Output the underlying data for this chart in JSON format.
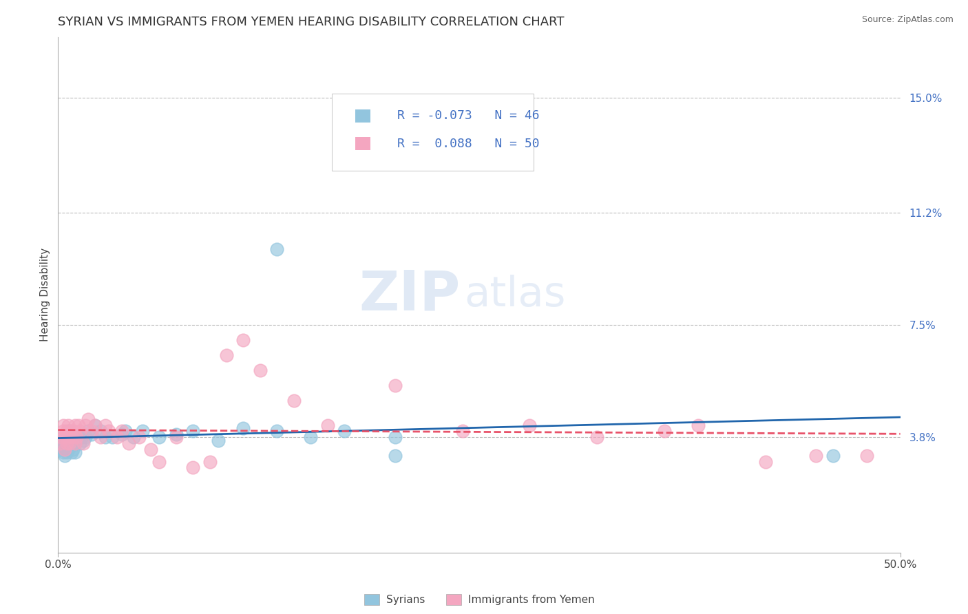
{
  "title": "SYRIAN VS IMMIGRANTS FROM YEMEN HEARING DISABILITY CORRELATION CHART",
  "source": "Source: ZipAtlas.com",
  "ylabel": "Hearing Disability",
  "xlabel_syrians": "Syrians",
  "xlabel_yemen": "Immigrants from Yemen",
  "watermark_zip": "ZIP",
  "watermark_atlas": "atlas",
  "xlim": [
    0.0,
    0.5
  ],
  "ylim": [
    0.0,
    0.17
  ],
  "yticks": [
    0.038,
    0.075,
    0.112,
    0.15
  ],
  "ytick_labels": [
    "3.8%",
    "7.5%",
    "11.2%",
    "15.0%"
  ],
  "xticks": [
    0.0,
    0.5
  ],
  "R_syrians": -0.073,
  "N_syrians": 46,
  "R_yemen": 0.088,
  "N_yemen": 50,
  "color_syrians": "#92c5de",
  "color_yemen": "#f4a6c0",
  "line_color_syrians": "#2166ac",
  "line_color_yemen": "#e8536a",
  "background_color": "#ffffff",
  "grid_color": "#bbbbbb",
  "syrians_x": [
    0.001,
    0.002,
    0.003,
    0.003,
    0.004,
    0.004,
    0.005,
    0.005,
    0.006,
    0.006,
    0.007,
    0.007,
    0.008,
    0.008,
    0.009,
    0.009,
    0.01,
    0.01,
    0.011,
    0.012,
    0.013,
    0.014,
    0.015,
    0.016,
    0.018,
    0.02,
    0.022,
    0.025,
    0.028,
    0.032,
    0.038,
    0.04,
    0.045,
    0.05,
    0.06,
    0.07,
    0.08,
    0.095,
    0.11,
    0.13,
    0.15,
    0.17,
    0.2,
    0.2,
    0.13,
    0.46
  ],
  "syrians_y": [
    0.034,
    0.036,
    0.033,
    0.038,
    0.035,
    0.032,
    0.036,
    0.033,
    0.037,
    0.034,
    0.04,
    0.035,
    0.037,
    0.033,
    0.039,
    0.034,
    0.036,
    0.033,
    0.037,
    0.038,
    0.036,
    0.038,
    0.037,
    0.038,
    0.04,
    0.039,
    0.042,
    0.04,
    0.038,
    0.038,
    0.039,
    0.04,
    0.038,
    0.04,
    0.038,
    0.039,
    0.04,
    0.037,
    0.041,
    0.04,
    0.038,
    0.04,
    0.038,
    0.032,
    0.1,
    0.032
  ],
  "yemen_x": [
    0.001,
    0.002,
    0.003,
    0.003,
    0.004,
    0.004,
    0.005,
    0.005,
    0.006,
    0.006,
    0.007,
    0.007,
    0.008,
    0.009,
    0.01,
    0.01,
    0.011,
    0.012,
    0.013,
    0.015,
    0.016,
    0.018,
    0.02,
    0.022,
    0.025,
    0.028,
    0.03,
    0.035,
    0.038,
    0.042,
    0.048,
    0.055,
    0.06,
    0.07,
    0.08,
    0.09,
    0.1,
    0.11,
    0.12,
    0.14,
    0.16,
    0.2,
    0.24,
    0.28,
    0.32,
    0.36,
    0.38,
    0.42,
    0.45,
    0.48
  ],
  "yemen_y": [
    0.036,
    0.038,
    0.04,
    0.042,
    0.034,
    0.038,
    0.04,
    0.036,
    0.038,
    0.042,
    0.04,
    0.036,
    0.038,
    0.04,
    0.042,
    0.036,
    0.038,
    0.042,
    0.04,
    0.036,
    0.042,
    0.044,
    0.04,
    0.042,
    0.038,
    0.042,
    0.04,
    0.038,
    0.04,
    0.036,
    0.038,
    0.034,
    0.03,
    0.038,
    0.028,
    0.03,
    0.065,
    0.07,
    0.06,
    0.05,
    0.042,
    0.055,
    0.04,
    0.042,
    0.038,
    0.04,
    0.042,
    0.03,
    0.032,
    0.032
  ],
  "title_fontsize": 13,
  "axis_label_fontsize": 11,
  "tick_fontsize": 11,
  "legend_fontsize": 13
}
